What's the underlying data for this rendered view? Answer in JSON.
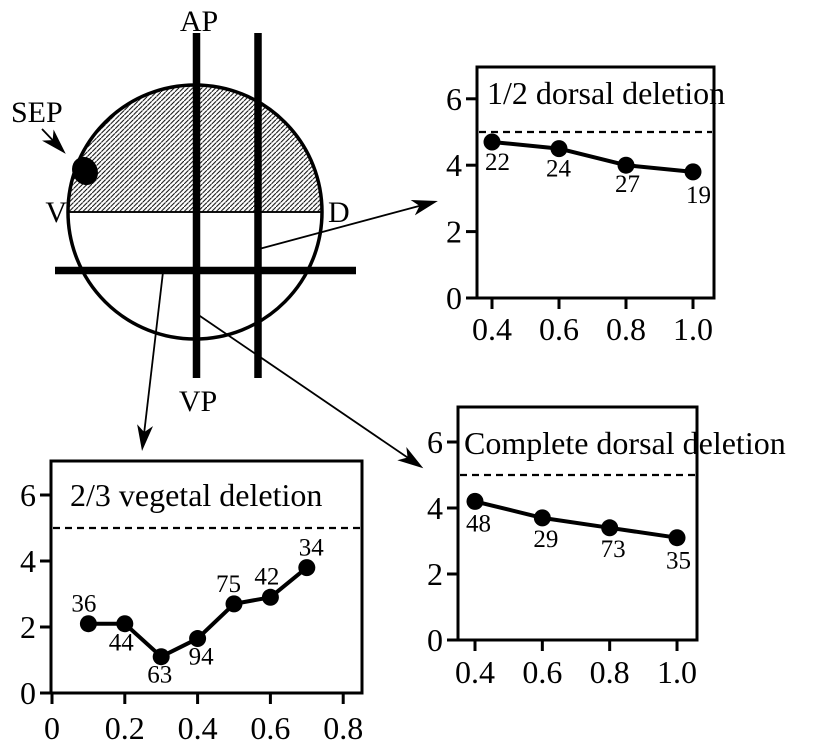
{
  "figure": {
    "description": "Embryo deletion experiment figure",
    "colors": {
      "ink": "#000000",
      "background": "#ffffff"
    }
  },
  "diagram": {
    "labels": {
      "animal_pole": "AP",
      "vegetal_pole": "VP",
      "ventral": "V",
      "dorsal": "D",
      "sep": "SEP"
    }
  },
  "chart_data": [
    {
      "id": "half-dorsal-deletion",
      "type": "line",
      "title": "1/2 dorsal deletion",
      "x": [
        0.4,
        0.6,
        0.8,
        1.0
      ],
      "values": [
        4.7,
        4.5,
        4.0,
        3.8
      ],
      "point_labels": [
        "22",
        "24",
        "27",
        "19"
      ],
      "xtick_labels": [
        "0.4",
        "0.6",
        "0.8",
        "1.0"
      ],
      "xtick_values": [
        0.4,
        0.6,
        0.8,
        1.0
      ],
      "ytick_labels": [
        "0",
        "2",
        "4",
        "6"
      ],
      "ytick_values": [
        0,
        2,
        4,
        6
      ],
      "reference_line": {
        "y": 5,
        "style": "dashed"
      },
      "xlim": [
        0.35,
        1.06
      ],
      "ylim": [
        0,
        7
      ],
      "grid": false,
      "legend": null
    },
    {
      "id": "complete-dorsal-deletion",
      "type": "line",
      "title": "Complete dorsal deletion",
      "x": [
        0.4,
        0.6,
        0.8,
        1.0
      ],
      "values": [
        4.2,
        3.7,
        3.4,
        3.1
      ],
      "point_labels": [
        "48",
        "29",
        "73",
        "35"
      ],
      "xtick_labels": [
        "0.4",
        "0.6",
        "0.8",
        "1.0"
      ],
      "xtick_values": [
        0.4,
        0.6,
        0.8,
        1.0
      ],
      "ytick_labels": [
        "0",
        "2",
        "4",
        "6"
      ],
      "ytick_values": [
        0,
        2,
        4,
        6
      ],
      "reference_line": {
        "y": 5,
        "style": "dashed"
      },
      "xlim": [
        0.35,
        1.06
      ],
      "ylim": [
        0,
        7
      ],
      "grid": false,
      "legend": null
    },
    {
      "id": "two-thirds-vegetal-deletion",
      "type": "line",
      "title": "2/3 vegetal deletion",
      "x": [
        0.1,
        0.2,
        0.3,
        0.4,
        0.5,
        0.6,
        0.7
      ],
      "values": [
        2.1,
        2.1,
        1.1,
        1.65,
        2.7,
        2.9,
        3.8
      ],
      "point_labels": [
        "36",
        "44",
        "63",
        "94",
        "75",
        "42",
        "34"
      ],
      "xtick_labels": [
        "0",
        "0.2",
        "0.4",
        "0.6",
        "0.8"
      ],
      "xtick_values": [
        0,
        0.2,
        0.4,
        0.6,
        0.8
      ],
      "ytick_labels": [
        "0",
        "2",
        "4",
        "6"
      ],
      "ytick_values": [
        0,
        2,
        4,
        6
      ],
      "reference_line": {
        "y": 5,
        "style": "dashed"
      },
      "xlim": [
        0,
        0.85
      ],
      "ylim": [
        0,
        7
      ],
      "grid": false,
      "legend": null
    }
  ]
}
